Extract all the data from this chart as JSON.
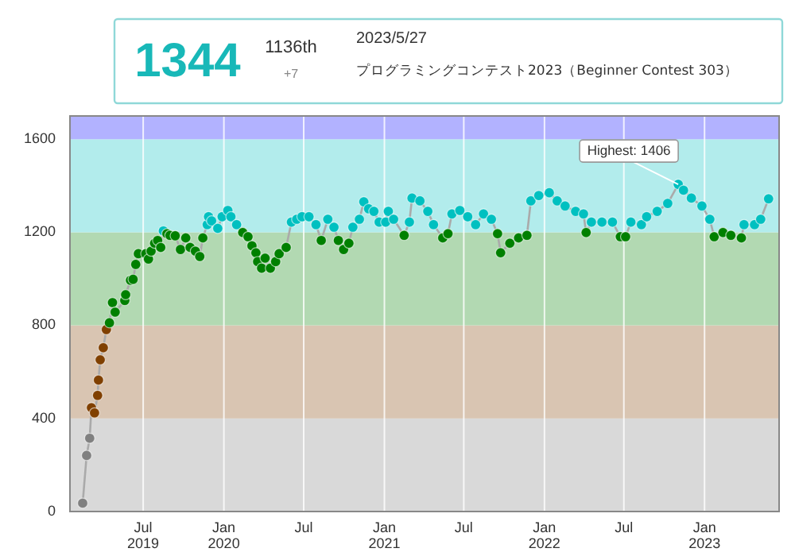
{
  "chart_data": {
    "type": "line",
    "marker": "circle",
    "grid": "x",
    "annotations": [
      "1344",
      "1136th",
      "+7",
      "2023/5/27",
      "プログラミングコンテスト2023（Beginner Contest 303）",
      {
        "text": "Highest: 1406",
        "x": "2022-11-02",
        "y": 1406
      }
    ],
    "xlim": [
      "2019-01-15",
      "2023-06-20"
    ],
    "xticks": [
      {
        "value": "2019-07-01",
        "label": "Jul 2019"
      },
      {
        "value": "2020-01-01",
        "label": "Jan 2020"
      },
      {
        "value": "2020-07-01",
        "label": "Jul"
      },
      {
        "value": "2021-01-01",
        "label": "Jan 2021"
      },
      {
        "value": "2021-07-01",
        "label": "Jul"
      },
      {
        "value": "2022-01-01",
        "label": "Jan 2022"
      },
      {
        "value": "2022-07-01",
        "label": "Jul"
      },
      {
        "value": "2023-01-01",
        "label": "Jan 2023"
      }
    ],
    "ylim": [
      0,
      1700
    ],
    "yticks": [
      0,
      400,
      800,
      1200,
      1600
    ],
    "bands": [
      {
        "axis": "y",
        "from": 0,
        "to": 400,
        "color": "#d9d9d9"
      },
      {
        "axis": "y",
        "from": 400,
        "to": 800,
        "color": "#d9c5b2"
      },
      {
        "axis": "y",
        "from": 800,
        "to": 1200,
        "color": "#b2d9b2"
      },
      {
        "axis": "y",
        "from": 1200,
        "to": 1600,
        "color": "#b2ecec"
      },
      {
        "axis": "y",
        "from": 1600,
        "to": 1700,
        "color": "#b2b2ff"
      }
    ],
    "series": [
      {
        "color": "#aaaaaa",
        "x": [
          "2019-02-13",
          "2019-02-22",
          "2019-03-01",
          "2019-03-05",
          "2019-03-12",
          "2019-03-19",
          "2019-03-21",
          "2019-03-25",
          "2019-04-01",
          "2019-04-08",
          "2019-04-15",
          "2019-04-22",
          "2019-04-28",
          "2019-05-20",
          "2019-05-22",
          "2019-06-02",
          "2019-06-08",
          "2019-06-14",
          "2019-06-20",
          "2019-07-07",
          "2019-07-13",
          "2019-07-19",
          "2019-07-27",
          "2019-08-03",
          "2019-08-10",
          "2019-08-16",
          "2019-08-24",
          "2019-08-31",
          "2019-09-12",
          "2019-09-24",
          "2019-10-06",
          "2019-10-16",
          "2019-10-28",
          "2019-11-07",
          "2019-11-14",
          "2019-11-24",
          "2019-11-27",
          "2019-12-04",
          "2019-12-18",
          "2019-12-28",
          "2020-01-10",
          "2020-01-17",
          "2020-01-30",
          "2020-02-13",
          "2020-02-25",
          "2020-03-05",
          "2020-03-14",
          "2020-03-18",
          "2020-03-27",
          "2020-04-04",
          "2020-04-16",
          "2020-04-28",
          "2020-05-06",
          "2020-05-22",
          "2020-06-03",
          "2020-06-15",
          "2020-06-27",
          "2020-07-13",
          "2020-07-29",
          "2020-08-10",
          "2020-08-25",
          "2020-09-08",
          "2020-09-18",
          "2020-09-30",
          "2020-10-12",
          "2020-10-21",
          "2020-11-05",
          "2020-11-15",
          "2020-11-26",
          "2020-12-08",
          "2020-12-20",
          "2021-01-04",
          "2021-01-10",
          "2021-01-22",
          "2021-02-15",
          "2021-02-27",
          "2021-03-05",
          "2021-03-23",
          "2021-04-10",
          "2021-04-23",
          "2021-05-14",
          "2021-05-26",
          "2021-06-04",
          "2021-06-22",
          "2021-07-10",
          "2021-07-28",
          "2021-08-15",
          "2021-09-02",
          "2021-09-16",
          "2021-09-23",
          "2021-10-14",
          "2021-11-03",
          "2021-11-22",
          "2021-12-01",
          "2021-12-19",
          "2022-01-12",
          "2022-01-30",
          "2022-02-17",
          "2022-03-13",
          "2022-03-31",
          "2022-04-06",
          "2022-04-18",
          "2022-05-12",
          "2022-06-05",
          "2022-06-23",
          "2022-07-05",
          "2022-07-17",
          "2022-08-10",
          "2022-08-22",
          "2022-09-15",
          "2022-10-09",
          "2022-11-02",
          "2022-11-14",
          "2022-12-02",
          "2022-12-26",
          "2023-01-13",
          "2023-01-23",
          "2023-02-12",
          "2023-03-02",
          "2023-03-26",
          "2023-04-01",
          "2023-04-25",
          "2023-05-09",
          "2023-05-27"
        ],
        "values": [
          36,
          241,
          315,
          446,
          424,
          499,
          565,
          652,
          704,
          782,
          811,
          898,
          857,
          907,
          932,
          994,
          998,
          1062,
          1108,
          1108,
          1085,
          1119,
          1153,
          1165,
          1135,
          1206,
          1194,
          1187,
          1185,
          1126,
          1176,
          1135,
          1119,
          1096,
          1176,
          1233,
          1267,
          1249,
          1217,
          1267,
          1294,
          1267,
          1233,
          1199,
          1181,
          1142,
          1112,
          1074,
          1046,
          1089,
          1046,
          1074,
          1108,
          1135,
          1244,
          1256,
          1267,
          1267,
          1233,
          1165,
          1256,
          1222,
          1165,
          1126,
          1153,
          1222,
          1256,
          1331,
          1301,
          1290,
          1244,
          1244,
          1290,
          1256,
          1187,
          1244,
          1347,
          1335,
          1290,
          1233,
          1176,
          1194,
          1279,
          1294,
          1267,
          1233,
          1279,
          1256,
          1194,
          1112,
          1153,
          1176,
          1187,
          1335,
          1358,
          1370,
          1335,
          1313,
          1290,
          1279,
          1199,
          1244,
          1244,
          1244,
          1181,
          1181,
          1244,
          1233,
          1267,
          1290,
          1324,
          1406,
          1381,
          1347,
          1313,
          1256,
          1181,
          1199,
          1187,
          1176,
          1233,
          1233,
          1256,
          1344
        ],
        "colors": [
          "#808080",
          "#808080",
          "#808080",
          "#804000",
          "#804000",
          "#804000",
          "#804000",
          "#804000",
          "#804000",
          "#804000",
          "#008000",
          "#008000",
          "#008000",
          "#008000",
          "#008000",
          "#008000",
          "#008000",
          "#008000",
          "#008000",
          "#008000",
          "#008000",
          "#008000",
          "#008000",
          "#008000",
          "#008000",
          "#00c0c0",
          "#008000",
          "#008000",
          "#008000",
          "#008000",
          "#008000",
          "#008000",
          "#008000",
          "#008000",
          "#008000",
          "#00c0c0",
          "#00c0c0",
          "#00c0c0",
          "#00c0c0",
          "#00c0c0",
          "#00c0c0",
          "#00c0c0",
          "#00c0c0",
          "#008000",
          "#008000",
          "#008000",
          "#008000",
          "#008000",
          "#008000",
          "#008000",
          "#008000",
          "#008000",
          "#008000",
          "#008000",
          "#00c0c0",
          "#00c0c0",
          "#00c0c0",
          "#00c0c0",
          "#00c0c0",
          "#008000",
          "#00c0c0",
          "#00c0c0",
          "#008000",
          "#008000",
          "#008000",
          "#00c0c0",
          "#00c0c0",
          "#00c0c0",
          "#00c0c0",
          "#00c0c0",
          "#00c0c0",
          "#00c0c0",
          "#00c0c0",
          "#00c0c0",
          "#008000",
          "#00c0c0",
          "#00c0c0",
          "#00c0c0",
          "#00c0c0",
          "#00c0c0",
          "#008000",
          "#008000",
          "#00c0c0",
          "#00c0c0",
          "#00c0c0",
          "#00c0c0",
          "#00c0c0",
          "#00c0c0",
          "#008000",
          "#008000",
          "#008000",
          "#008000",
          "#008000",
          "#00c0c0",
          "#00c0c0",
          "#00c0c0",
          "#00c0c0",
          "#00c0c0",
          "#00c0c0",
          "#00c0c0",
          "#008000",
          "#00c0c0",
          "#00c0c0",
          "#00c0c0",
          "#008000",
          "#008000",
          "#00c0c0",
          "#00c0c0",
          "#00c0c0",
          "#00c0c0",
          "#00c0c0",
          "#00c0c0",
          "#00c0c0",
          "#00c0c0",
          "#00c0c0",
          "#00c0c0",
          "#008000",
          "#008000",
          "#008000",
          "#008000",
          "#00c0c0",
          "#00c0c0",
          "#00c0c0",
          "#00c0c0"
        ]
      }
    ]
  }
}
